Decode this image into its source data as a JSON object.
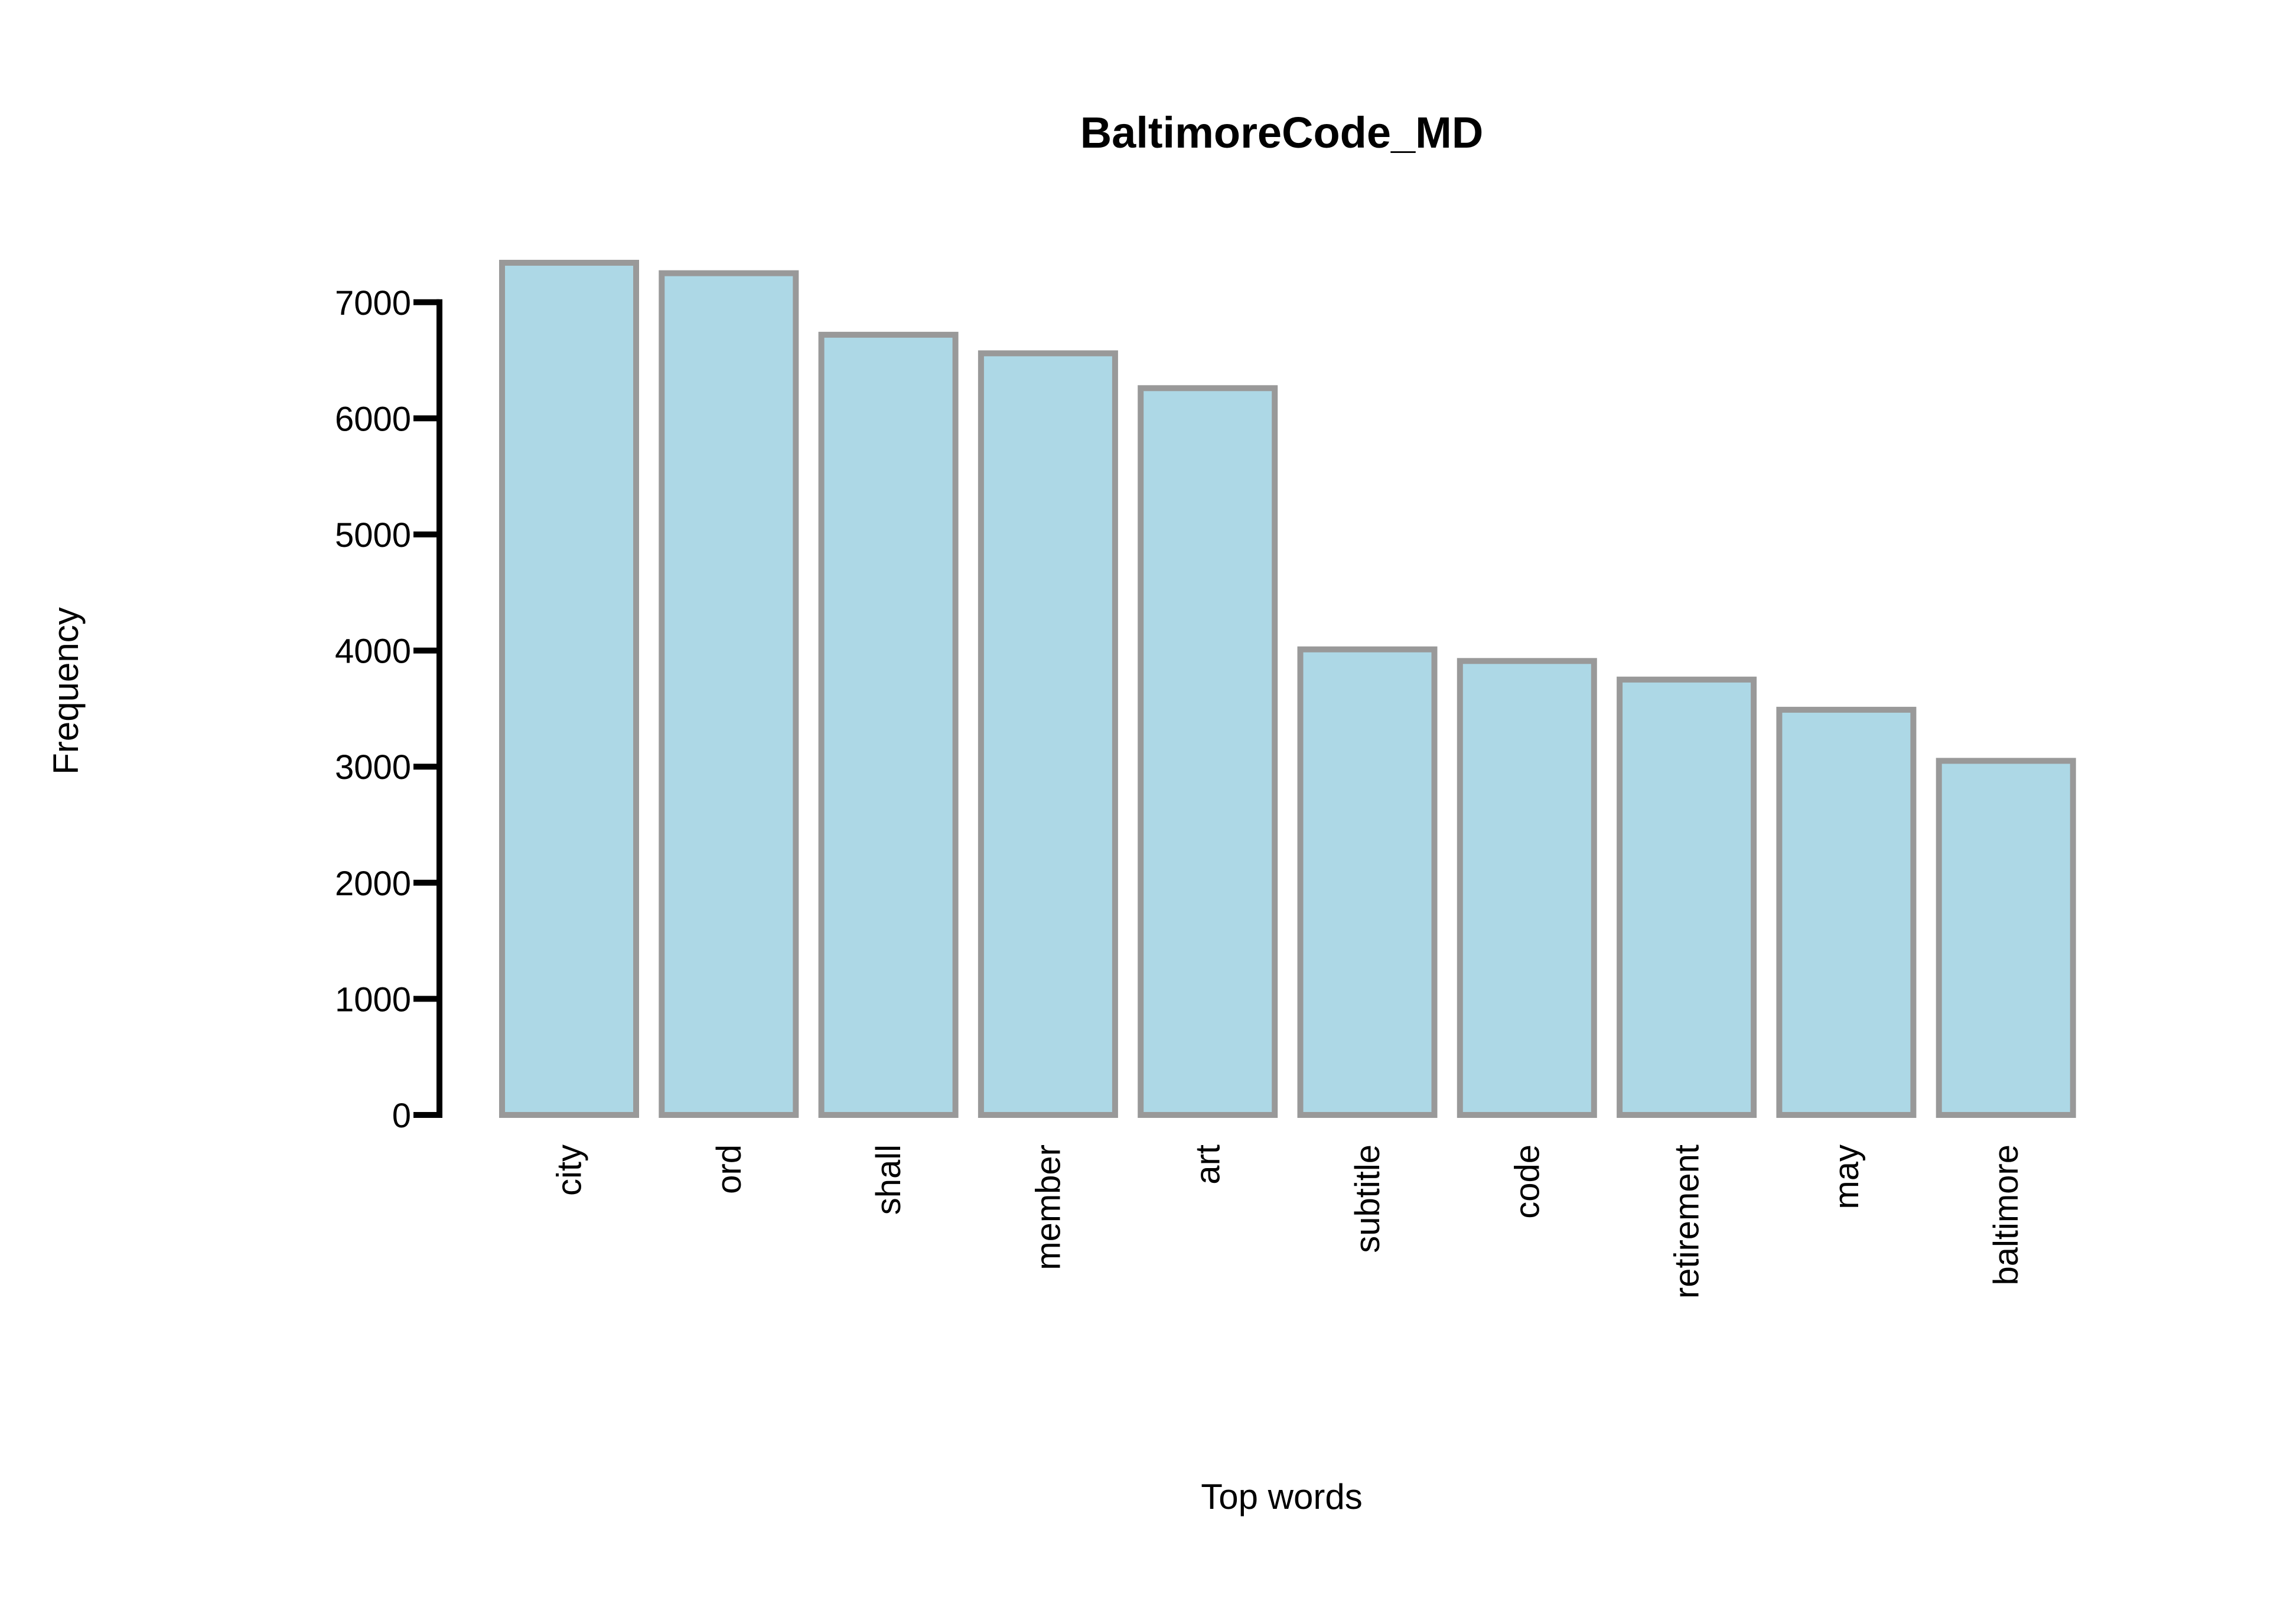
{
  "chart_data": {
    "type": "bar",
    "title": "BaltimoreCode_MD",
    "xlabel": "Top words",
    "ylabel": "Frequency",
    "categories": [
      "city",
      "ord",
      "shall",
      "member",
      "art",
      "subtitle",
      "code",
      "retirement",
      "may",
      "baltimore"
    ],
    "values": [
      7340,
      7250,
      6720,
      6560,
      6260,
      4010,
      3910,
      3750,
      3490,
      3050
    ],
    "ylim": [
      0,
      7000
    ],
    "yticks": [
      0,
      1000,
      2000,
      3000,
      4000,
      5000,
      6000,
      7000
    ],
    "grid": false,
    "legend": "none",
    "colors": {
      "bar_fill": "#add8e6",
      "bar_stroke": "#999999",
      "axis": "#000000"
    }
  }
}
